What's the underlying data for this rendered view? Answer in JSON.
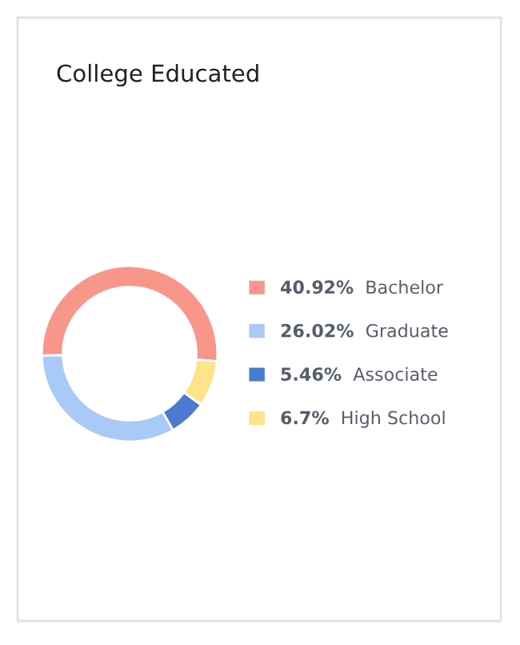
{
  "chart_data": {
    "type": "donut",
    "title": "College Educated",
    "categories": [
      "Bachelor",
      "Graduate",
      "Associate",
      "High School"
    ],
    "values": [
      40.92,
      26.02,
      5.46,
      6.7
    ],
    "value_labels": [
      "40.92%",
      "26.02%",
      "5.46%",
      "6.7%"
    ],
    "colors": [
      "#f8968a",
      "#a9c9f9",
      "#4a7bd0",
      "#fde38a"
    ],
    "legend": "right"
  }
}
